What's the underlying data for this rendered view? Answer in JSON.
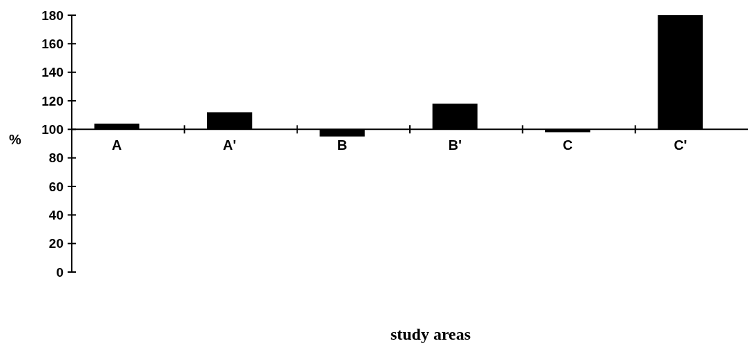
{
  "chart_data": {
    "type": "bar",
    "xlabel": "study areas",
    "ylabel": "%",
    "categories": [
      "A",
      "A'",
      "B",
      "B'",
      "C",
      "C'"
    ],
    "base": [
      100,
      100,
      100,
      100,
      100,
      100
    ],
    "values": [
      4,
      12,
      -5,
      18,
      -2,
      80
    ],
    "color": "#000000",
    "ylim": [
      0,
      180
    ],
    "yticks": [
      0,
      20,
      40,
      60,
      80,
      100,
      120,
      140,
      160,
      180
    ],
    "grid": false
  }
}
